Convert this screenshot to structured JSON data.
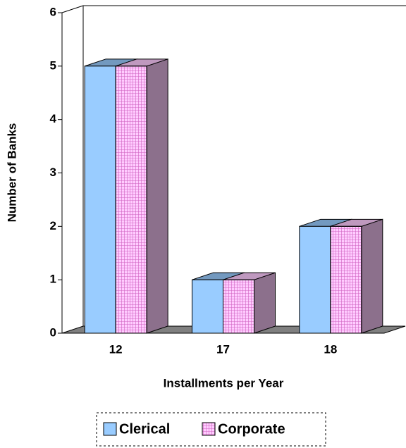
{
  "chart_data": {
    "type": "bar3d",
    "x_label": "Installments per Year",
    "y_label": "Number of Banks",
    "categories": [
      "12",
      "17",
      "18"
    ],
    "series": [
      {
        "name": "Clerical",
        "color": "#99ccff",
        "values": [
          5,
          1,
          2
        ]
      },
      {
        "name": "Corporate",
        "color": "#ffccff",
        "hatch": "grid",
        "values": [
          5,
          1,
          2
        ]
      }
    ],
    "ylim": [
      0,
      6
    ],
    "yticks": [
      0,
      1,
      2,
      3,
      4,
      5,
      6
    ]
  }
}
